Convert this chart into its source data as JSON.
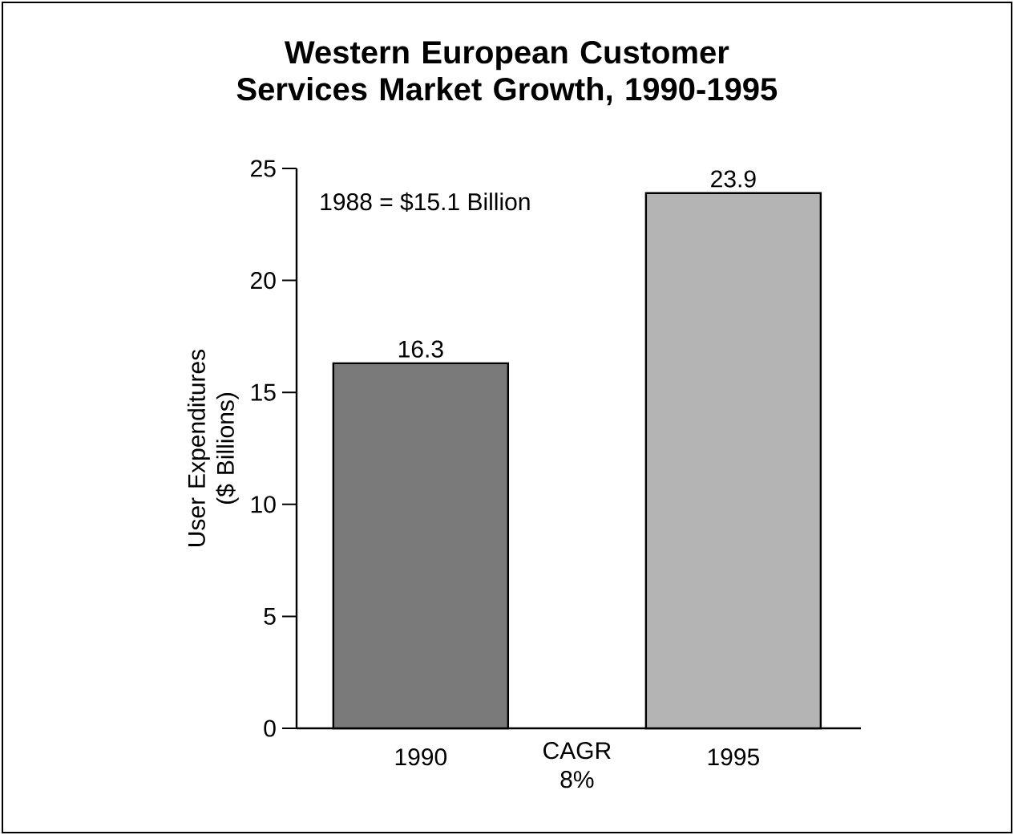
{
  "chart_data": {
    "type": "bar",
    "title": "Western European Customer Services Market Growth, 1990-1995",
    "ylabel": "User Expenditures ($ Billions)",
    "categories": [
      "1990",
      "1995"
    ],
    "values": [
      16.3,
      23.9
    ],
    "colors": [
      "#7a7a7a",
      "#b4b4b4"
    ],
    "ylim": [
      0,
      25
    ],
    "yticks": [
      0,
      5,
      10,
      15,
      20,
      25
    ],
    "data_labels": true,
    "annotations": [
      "1988 = $15.1 Billion",
      "CAGR 8%"
    ]
  }
}
